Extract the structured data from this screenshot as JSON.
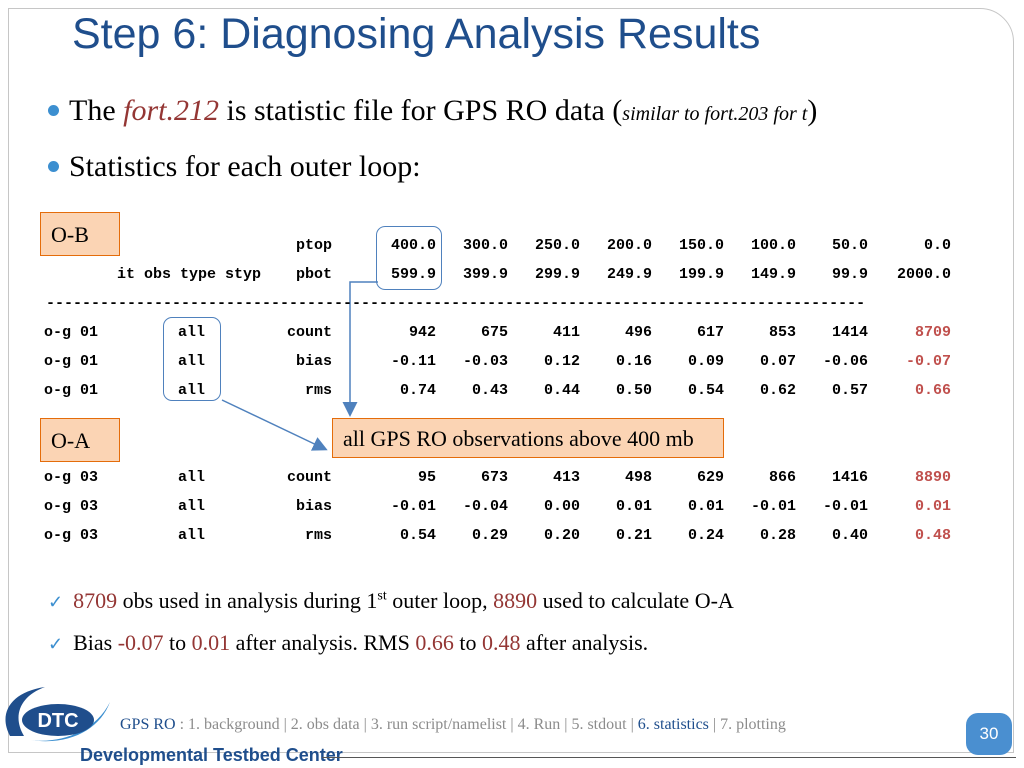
{
  "title": "Step 6: Diagnosing Analysis Results",
  "bullet1": {
    "pre": "The",
    "file": "fort.212",
    "mid": "is statistic file for GPS RO data (",
    "note": "similar to fort.203 for t",
    "end": ")"
  },
  "bullet2": "Statistics for each outer loop:",
  "ob_label": "O-B",
  "oa_label": "O-A",
  "callout": "all GPS RO observations above 400 mb",
  "table": {
    "ptop_label": "ptop",
    "header2": "it obs type styp",
    "pbot_label": "pbot",
    "ptop": [
      "400.0",
      "300.0",
      "250.0",
      "200.0",
      "150.0",
      "100.0",
      "50.0",
      "0.0"
    ],
    "pbot": [
      "599.9",
      "399.9",
      "299.9",
      "249.9",
      "199.9",
      "149.9",
      "99.9",
      "2000.0"
    ],
    "separator": "-------------------------------------------------------------------------------------------",
    "ob_rows": [
      {
        "it": "o-g 01",
        "obs": "all",
        "stat": "count",
        "vals": [
          "942",
          "675",
          "411",
          "496",
          "617",
          "853",
          "1414"
        ],
        "total": "8709"
      },
      {
        "it": "o-g 01",
        "obs": "all",
        "stat": "bias",
        "vals": [
          "-0.11",
          "-0.03",
          "0.12",
          "0.16",
          "0.09",
          "0.07",
          "-0.06"
        ],
        "total": "-0.07"
      },
      {
        "it": "o-g 01",
        "obs": "all",
        "stat": "rms",
        "vals": [
          "0.74",
          "0.43",
          "0.44",
          "0.50",
          "0.54",
          "0.62",
          "0.57"
        ],
        "total": "0.66"
      }
    ],
    "oa_rows": [
      {
        "it": "o-g 03",
        "obs": "all",
        "stat": "count",
        "vals": [
          "95",
          "673",
          "413",
          "498",
          "629",
          "866",
          "1416"
        ],
        "total": "8890"
      },
      {
        "it": "o-g 03",
        "obs": "all",
        "stat": "bias",
        "vals": [
          "-0.01",
          "-0.04",
          "0.00",
          "0.01",
          "0.01",
          "-0.01",
          "-0.01"
        ],
        "total": "0.01"
      },
      {
        "it": "o-g 03",
        "obs": "all",
        "stat": "rms",
        "vals": [
          "0.54",
          "0.29",
          "0.20",
          "0.21",
          "0.24",
          "0.28",
          "0.40"
        ],
        "total": "0.48"
      }
    ]
  },
  "check1": {
    "n1": "8709",
    "t1": "obs used in analysis during 1",
    "sup": "st",
    "t2": "outer loop,",
    "n2": "8890",
    "t3": "used to calculate O-A"
  },
  "check2": {
    "t1": "Bias",
    "v1": "-0.07",
    "t2": "to",
    "v2": "0.01",
    "t3": "after analysis.  RMS",
    "v3": "0.66",
    "t4": "to",
    "v4": "0.48",
    "t5": "after analysis."
  },
  "footer": {
    "brand": "GPS RO",
    "sep0": " : ",
    "items": [
      "1. background",
      "2. obs data",
      "3. run script/namelist",
      "4. Run",
      "5. stdout",
      "6. statistics",
      "7. plotting"
    ],
    "page": "30",
    "logo_abbr": "DTC",
    "logo_name": "Developmental Testbed Center"
  },
  "colors": {
    "title": "#1f4e8c",
    "accent_red": "#943634",
    "table_red": "#c0504d",
    "label_fill": "#fbd4b4",
    "highlight": "#4f81bd"
  }
}
